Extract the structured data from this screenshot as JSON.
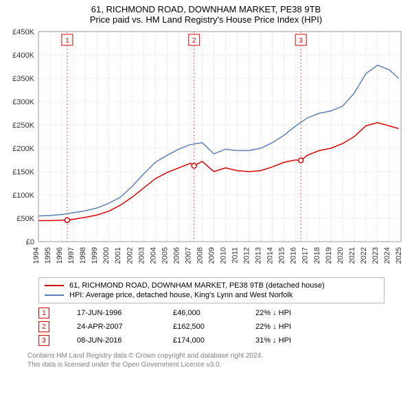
{
  "title": "61, RICHMOND ROAD, DOWNHAM MARKET, PE38 9TB",
  "subtitle": "Price paid vs. HM Land Registry's House Price Index (HPI)",
  "chart": {
    "type": "line",
    "background_color": "#ffffff",
    "plot_border_color": "#999999",
    "grid_color": "#e0e0e0",
    "grid_dash": "2,2",
    "marker_guide_color": "#dd0000",
    "marker_guide_dash": "2,3",
    "ylim": [
      0,
      450000
    ],
    "ytick_step": 50000,
    "ytick_labels": [
      "£0",
      "£50K",
      "£100K",
      "£150K",
      "£200K",
      "£250K",
      "£300K",
      "£350K",
      "£400K",
      "£450K"
    ],
    "xlim": [
      1994,
      2025
    ],
    "xtick_step": 1,
    "xtick_labels": [
      "1994",
      "1995",
      "1996",
      "1997",
      "1998",
      "1999",
      "2000",
      "2001",
      "2002",
      "2003",
      "2004",
      "2005",
      "2006",
      "2007",
      "2008",
      "2009",
      "2010",
      "2011",
      "2012",
      "2013",
      "2014",
      "2015",
      "2016",
      "2017",
      "2018",
      "2019",
      "2020",
      "2021",
      "2022",
      "2023",
      "2024",
      "2025"
    ],
    "axis_fontsize": 11,
    "series": [
      {
        "name": "property",
        "color": "#dd0000",
        "width": 1.5,
        "x": [
          1994,
          1995,
          1996,
          1996.46,
          1997,
          1998,
          1999,
          2000,
          2001,
          2002,
          2003,
          2004,
          2005,
          2006,
          2007,
          2007.31,
          2008,
          2009,
          2010,
          2011,
          2012,
          2013,
          2014,
          2015,
          2016,
          2016.44,
          2017,
          2018,
          2019,
          2020,
          2021,
          2022,
          2023,
          2024,
          2024.8
        ],
        "y": [
          45000,
          45000,
          46000,
          46000,
          48000,
          52000,
          57000,
          65000,
          78000,
          95000,
          115000,
          135000,
          148000,
          158000,
          168000,
          162500,
          172000,
          150000,
          158000,
          152000,
          150000,
          152000,
          160000,
          170000,
          175000,
          174000,
          185000,
          195000,
          200000,
          210000,
          225000,
          248000,
          255000,
          248000,
          242000
        ]
      },
      {
        "name": "hpi",
        "color": "#5b7fb4",
        "width": 1.5,
        "x": [
          1994,
          1995,
          1996,
          1997,
          1998,
          1999,
          2000,
          2001,
          2002,
          2003,
          2004,
          2005,
          2006,
          2007,
          2008,
          2009,
          2010,
          2011,
          2012,
          2013,
          2014,
          2015,
          2016,
          2017,
          2018,
          2019,
          2020,
          2021,
          2022,
          2023,
          2024,
          2024.8
        ],
        "y": [
          55000,
          56000,
          58000,
          62000,
          66000,
          72000,
          82000,
          95000,
          118000,
          145000,
          170000,
          185000,
          198000,
          208000,
          212000,
          188000,
          198000,
          195000,
          195000,
          200000,
          212000,
          228000,
          248000,
          265000,
          275000,
          280000,
          290000,
          318000,
          360000,
          378000,
          368000,
          350000
        ]
      }
    ],
    "sale_markers": [
      {
        "n": 1,
        "x": 1996.46,
        "y": 46000
      },
      {
        "n": 2,
        "x": 2007.31,
        "y": 162500
      },
      {
        "n": 3,
        "x": 2016.44,
        "y": 174000
      }
    ]
  },
  "legend": {
    "property_label": "61, RICHMOND ROAD, DOWNHAM MARKET, PE38 9TB (detached house)",
    "property_color": "#dd0000",
    "hpi_label": "HPI: Average price, detached house, King's Lynn and West Norfolk",
    "hpi_color": "#5b7fb4"
  },
  "sales": [
    {
      "n": "1",
      "date": "17-JUN-1996",
      "price": "£46,000",
      "hpi": "22% ↓ HPI"
    },
    {
      "n": "2",
      "date": "24-APR-2007",
      "price": "£162,500",
      "hpi": "22% ↓ HPI"
    },
    {
      "n": "3",
      "date": "08-JUN-2016",
      "price": "£174,000",
      "hpi": "31% ↓ HPI"
    }
  ],
  "marker_box_color": "#dd0000",
  "footer": {
    "line1": "Contains HM Land Registry data © Crown copyright and database right 2024.",
    "line2": "This data is licensed under the Open Government Licence v3.0."
  }
}
